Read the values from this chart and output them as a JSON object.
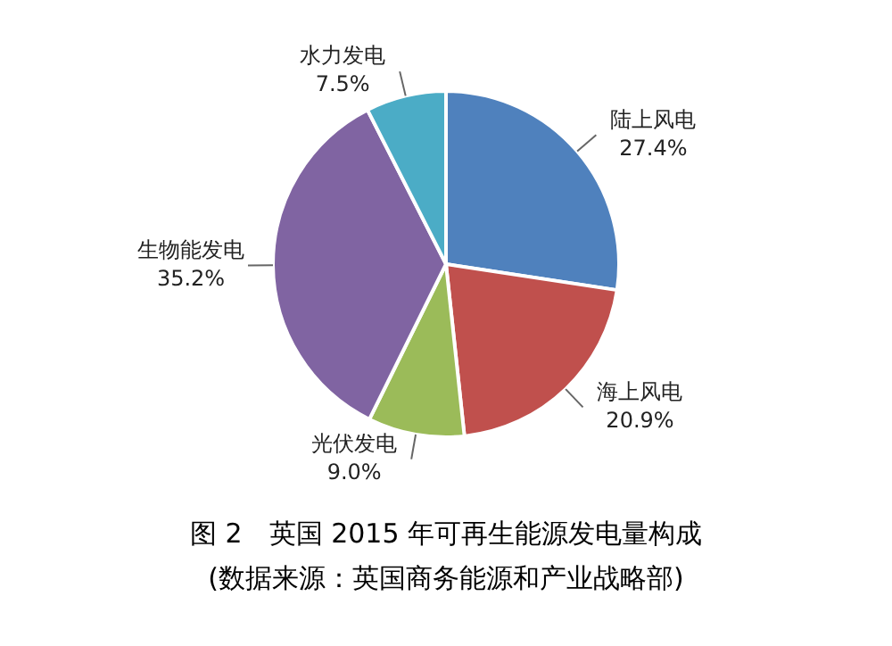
{
  "chart_data": {
    "type": "pie",
    "title": "图 2　英国 2015 年可再生能源发电量构成",
    "annotations": [
      "(数据来源：英国商务能源和产业战略部)"
    ],
    "categories": [
      "陆上风电",
      "海上风电",
      "光伏发电",
      "生物能发电",
      "水力发电"
    ],
    "values": [
      27.4,
      20.9,
      9.0,
      35.2,
      7.5
    ],
    "value_labels": [
      "27.4%",
      "20.9%",
      "9.0%",
      "35.2%",
      "7.5%"
    ],
    "colors": [
      "#4f81bd",
      "#c0504d",
      "#9bbb59",
      "#8064a2",
      "#4bacc6"
    ],
    "legend": false
  }
}
